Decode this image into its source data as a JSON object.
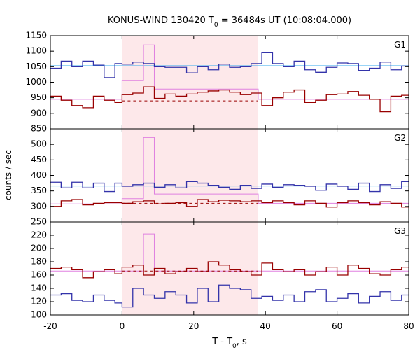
{
  "title": {
    "prefix": "KONUS-WIND 130420 T",
    "sub": "0",
    "suffix": " = 36484s UT (10:08:04.000)"
  },
  "xlabel": {
    "prefix": "T - T",
    "sub": "0",
    "suffix": ", s"
  },
  "ylabel": "counts / sec",
  "colors": {
    "blue_series": "#3333aa",
    "red_series": "#990000",
    "background_fit": "#33aaee",
    "pink_model": "#e080e0",
    "shade": "#fde8ea"
  },
  "chart_data": {
    "type": "line",
    "style": "step",
    "x_range": [
      -20,
      80
    ],
    "x_ticks": [
      -20,
      0,
      20,
      40,
      60,
      80
    ],
    "shaded_interval": [
      0,
      38
    ],
    "grid": false,
    "panels": [
      {
        "name": "G1",
        "ylim": [
          850,
          1150
        ],
        "y_ticks": [
          850,
          900,
          950,
          1000,
          1050,
          1100,
          1150
        ],
        "blue": {
          "x0": -20,
          "dx": 2.944,
          "values": [
            1045,
            1068,
            1050,
            1068,
            1068,
            1055,
            1015,
            1060,
            1048,
            1060,
            1065,
            1060,
            1065,
            1052,
            1048,
            1050,
            1020,
            1045,
            1030,
            1050,
            1040,
            1058,
            1048,
            1050,
            1060,
            1095,
            1075,
            1062,
            1050,
            1050,
            1048,
            1068,
            1060,
            1040,
            1038,
            1025,
            1040,
            1030,
            1045,
            1060,
            1055,
            1032,
            1060,
            1040,
            1065,
            1045,
            1065,
            1068,
            1060,
            1045,
            1042,
            1030,
            1068,
            1040,
            1070,
            1040,
            1062,
            1060,
            1048,
            1032,
            1040,
            1065,
            1060,
            1035,
            1045,
            1058,
            1060,
            1048,
            1050,
            1045,
            1032,
            1040,
            1060,
            1040,
            1030,
            1068,
            1065,
            1035,
            1030,
            1052,
            1060,
            1045,
            1060,
            1055,
            1030,
            1050,
            1060,
            1050,
            1048,
            1050,
            1050,
            1038,
            1052,
            1065,
            1050,
            1040,
            1040,
            1032,
            1058,
            1052,
            1065,
            1060,
            1055,
            1050,
            1050,
            1042,
            1055,
            1048,
            1060,
            1050,
            1050,
            1045,
            1060,
            1055,
            1065,
            1050,
            1045,
            1042,
            1055,
            1060,
            1050,
            1040,
            1055,
            1060,
            1058,
            1052,
            1060,
            1062,
            1050,
            1040,
            1042,
            1060,
            1058,
            1048,
            1042,
            1060,
            1060
          ]
        },
        "blue_steps": [
          [
            -20,
            1045
          ],
          [
            -17,
            1068
          ],
          [
            -14,
            1050
          ],
          [
            -11,
            1068
          ],
          [
            -8,
            1055
          ],
          [
            -5,
            1015
          ],
          [
            -2,
            1060
          ],
          [
            0,
            1058
          ],
          [
            3,
            1065
          ],
          [
            6,
            1060
          ],
          [
            9,
            1050
          ],
          [
            12,
            1048
          ],
          [
            15,
            1048
          ],
          [
            18,
            1030
          ],
          [
            21,
            1050
          ],
          [
            24,
            1040
          ],
          [
            27,
            1058
          ],
          [
            30,
            1048
          ],
          [
            33,
            1050
          ],
          [
            36,
            1060
          ],
          [
            39,
            1095
          ],
          [
            42,
            1060
          ],
          [
            45,
            1050
          ],
          [
            48,
            1068
          ],
          [
            51,
            1040
          ],
          [
            54,
            1032
          ],
          [
            57,
            1048
          ],
          [
            60,
            1062
          ],
          [
            63,
            1060
          ],
          [
            66,
            1038
          ],
          [
            69,
            1045
          ],
          [
            72,
            1065
          ],
          [
            75,
            1040
          ],
          [
            78,
            1052
          ],
          [
            80,
            1052
          ]
        ],
        "red_steps": [
          [
            -20,
            955
          ],
          [
            -17,
            942
          ],
          [
            -14,
            925
          ],
          [
            -11,
            918
          ],
          [
            -8,
            955
          ],
          [
            -5,
            942
          ],
          [
            -2,
            935
          ],
          [
            0,
            960
          ],
          [
            3,
            965
          ],
          [
            6,
            985
          ],
          [
            9,
            948
          ],
          [
            12,
            962
          ],
          [
            15,
            955
          ],
          [
            18,
            962
          ],
          [
            21,
            968
          ],
          [
            24,
            972
          ],
          [
            27,
            975
          ],
          [
            30,
            968
          ],
          [
            33,
            960
          ],
          [
            36,
            965
          ],
          [
            39,
            925
          ],
          [
            42,
            950
          ],
          [
            45,
            968
          ],
          [
            48,
            975
          ],
          [
            51,
            935
          ],
          [
            54,
            942
          ],
          [
            57,
            960
          ],
          [
            60,
            962
          ],
          [
            63,
            970
          ],
          [
            66,
            958
          ],
          [
            69,
            945
          ],
          [
            72,
            905
          ],
          [
            75,
            955
          ],
          [
            78,
            958
          ],
          [
            80,
            958
          ]
        ],
        "fit_level": 1053,
        "pink_steps": [
          [
            -20,
            945
          ],
          [
            0,
            945
          ],
          [
            0,
            1005
          ],
          [
            6,
            1005
          ],
          [
            6,
            1120
          ],
          [
            9,
            1120
          ],
          [
            9,
            978
          ],
          [
            38,
            978
          ],
          [
            38,
            945
          ],
          [
            80,
            945
          ]
        ],
        "dash_level": 940,
        "dash_range": [
          0,
          38
        ]
      },
      {
        "name": "G2",
        "ylim": [
          250,
          550
        ],
        "y_ticks": [
          250,
          300,
          350,
          400,
          450,
          500
        ],
        "blue_steps": [
          [
            -20,
            378
          ],
          [
            -17,
            360
          ],
          [
            -14,
            378
          ],
          [
            -11,
            360
          ],
          [
            -8,
            375
          ],
          [
            -5,
            348
          ],
          [
            -2,
            375
          ],
          [
            0,
            365
          ],
          [
            3,
            370
          ],
          [
            6,
            375
          ],
          [
            9,
            362
          ],
          [
            12,
            370
          ],
          [
            15,
            360
          ],
          [
            18,
            380
          ],
          [
            21,
            375
          ],
          [
            24,
            368
          ],
          [
            27,
            362
          ],
          [
            30,
            355
          ],
          [
            33,
            368
          ],
          [
            36,
            358
          ],
          [
            39,
            372
          ],
          [
            42,
            362
          ],
          [
            45,
            370
          ],
          [
            48,
            368
          ],
          [
            51,
            365
          ],
          [
            54,
            352
          ],
          [
            57,
            372
          ],
          [
            60,
            365
          ],
          [
            63,
            355
          ],
          [
            66,
            375
          ],
          [
            69,
            348
          ],
          [
            72,
            370
          ],
          [
            75,
            358
          ],
          [
            78,
            380
          ],
          [
            80,
            380
          ]
        ],
        "red_steps": [
          [
            -20,
            300
          ],
          [
            -17,
            318
          ],
          [
            -14,
            322
          ],
          [
            -11,
            305
          ],
          [
            -8,
            310
          ],
          [
            -5,
            312
          ],
          [
            -2,
            312
          ],
          [
            0,
            310
          ],
          [
            3,
            315
          ],
          [
            6,
            318
          ],
          [
            9,
            308
          ],
          [
            12,
            310
          ],
          [
            15,
            312
          ],
          [
            18,
            300
          ],
          [
            21,
            322
          ],
          [
            24,
            315
          ],
          [
            27,
            320
          ],
          [
            30,
            318
          ],
          [
            33,
            315
          ],
          [
            36,
            318
          ],
          [
            39,
            312
          ],
          [
            42,
            318
          ],
          [
            45,
            312
          ],
          [
            48,
            305
          ],
          [
            51,
            318
          ],
          [
            54,
            310
          ],
          [
            57,
            298
          ],
          [
            60,
            312
          ],
          [
            63,
            318
          ],
          [
            66,
            312
          ],
          [
            69,
            305
          ],
          [
            72,
            315
          ],
          [
            75,
            310
          ],
          [
            78,
            298
          ],
          [
            80,
            298
          ]
        ],
        "fit_level": 366,
        "pink_steps": [
          [
            -20,
            308
          ],
          [
            0,
            308
          ],
          [
            0,
            325
          ],
          [
            6,
            325
          ],
          [
            6,
            522
          ],
          [
            9,
            522
          ],
          [
            9,
            340
          ],
          [
            38,
            340
          ],
          [
            38,
            310
          ],
          [
            80,
            310
          ]
        ],
        "dash_level": 310,
        "dash_range": [
          0,
          38
        ]
      },
      {
        "name": "G3",
        "ylim": [
          100,
          240
        ],
        "y_ticks": [
          100,
          120,
          140,
          160,
          180,
          200,
          220
        ],
        "blue_steps": [
          [
            -20,
            130
          ],
          [
            -17,
            132
          ],
          [
            -14,
            122
          ],
          [
            -11,
            120
          ],
          [
            -8,
            130
          ],
          [
            -5,
            122
          ],
          [
            -2,
            118
          ],
          [
            0,
            112
          ],
          [
            3,
            140
          ],
          [
            6,
            130
          ],
          [
            9,
            125
          ],
          [
            12,
            135
          ],
          [
            15,
            130
          ],
          [
            18,
            118
          ],
          [
            21,
            140
          ],
          [
            24,
            120
          ],
          [
            27,
            145
          ],
          [
            30,
            140
          ],
          [
            33,
            138
          ],
          [
            36,
            125
          ],
          [
            39,
            128
          ],
          [
            42,
            122
          ],
          [
            45,
            130
          ],
          [
            48,
            120
          ],
          [
            51,
            135
          ],
          [
            54,
            138
          ],
          [
            57,
            120
          ],
          [
            60,
            125
          ],
          [
            63,
            132
          ],
          [
            66,
            118
          ],
          [
            69,
            128
          ],
          [
            72,
            135
          ],
          [
            75,
            122
          ],
          [
            78,
            130
          ],
          [
            80,
            130
          ]
        ],
        "red_steps": [
          [
            -20,
            170
          ],
          [
            -17,
            172
          ],
          [
            -14,
            168
          ],
          [
            -11,
            156
          ],
          [
            -8,
            165
          ],
          [
            -5,
            168
          ],
          [
            -2,
            162
          ],
          [
            0,
            172
          ],
          [
            3,
            175
          ],
          [
            6,
            160
          ],
          [
            9,
            170
          ],
          [
            12,
            162
          ],
          [
            15,
            165
          ],
          [
            18,
            170
          ],
          [
            21,
            165
          ],
          [
            24,
            180
          ],
          [
            27,
            175
          ],
          [
            30,
            168
          ],
          [
            33,
            165
          ],
          [
            36,
            160
          ],
          [
            39,
            178
          ],
          [
            42,
            168
          ],
          [
            45,
            165
          ],
          [
            48,
            168
          ],
          [
            51,
            160
          ],
          [
            54,
            165
          ],
          [
            57,
            172
          ],
          [
            60,
            160
          ],
          [
            63,
            175
          ],
          [
            66,
            170
          ],
          [
            69,
            162
          ],
          [
            72,
            160
          ],
          [
            75,
            168
          ],
          [
            78,
            172
          ],
          [
            80,
            172
          ]
        ],
        "fit_level": 130,
        "pink_steps": [
          [
            -20,
            166
          ],
          [
            0,
            166
          ],
          [
            0,
            166
          ],
          [
            6,
            166
          ],
          [
            6,
            222
          ],
          [
            9,
            222
          ],
          [
            9,
            166
          ],
          [
            38,
            166
          ],
          [
            38,
            166
          ],
          [
            80,
            166
          ]
        ],
        "dash_level": 166,
        "dash_range": [
          0,
          38
        ]
      }
    ]
  }
}
